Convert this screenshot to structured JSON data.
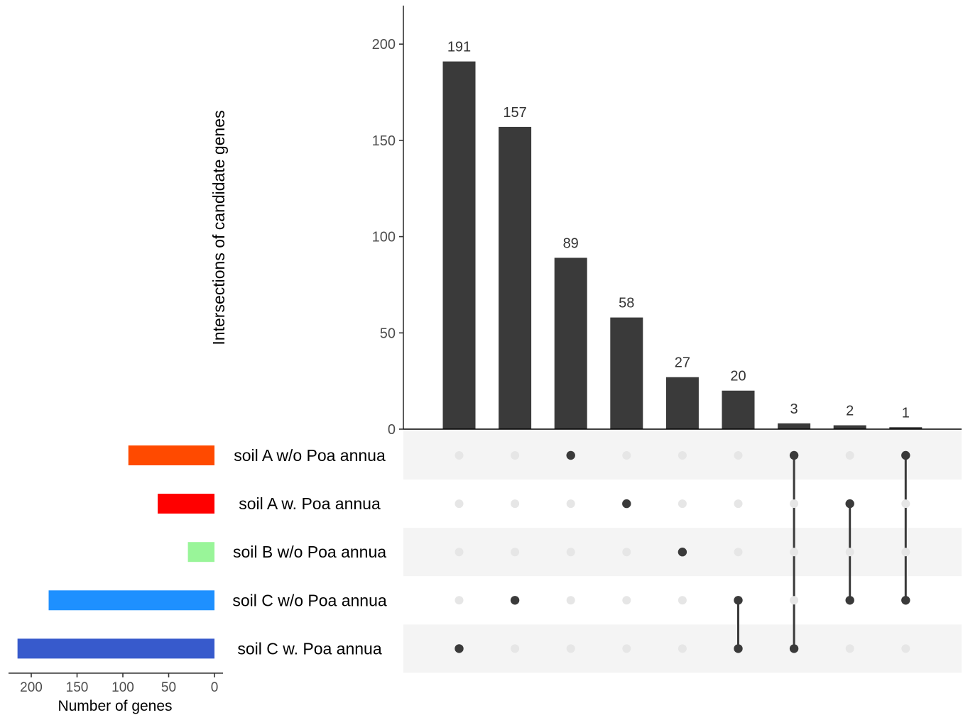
{
  "chart_data": {
    "type": "upset",
    "intersections": {
      "ylabel": "Intersections of candidate genes",
      "ylim": [
        0,
        220
      ],
      "yticks": [
        0,
        50,
        100,
        150,
        200
      ],
      "values": [
        191,
        157,
        89,
        58,
        27,
        20,
        3,
        2,
        1
      ],
      "labels": [
        "191",
        "157",
        "89",
        "58",
        "27",
        "20",
        "3",
        "2",
        "1"
      ],
      "bar_color": "#3a3a3a",
      "members": [
        [
          "soil C w. Poa annua"
        ],
        [
          "soil C w/o Poa annua"
        ],
        [
          "soil A w/o Poa annua"
        ],
        [
          "soil A w. Poa annua"
        ],
        [
          "soil B w/o Poa annua"
        ],
        [
          "soil C w/o Poa annua",
          "soil C w. Poa annua"
        ],
        [
          "soil A w/o Poa annua",
          "soil C w. Poa annua"
        ],
        [
          "soil A w. Poa annua",
          "soil C w/o Poa annua"
        ],
        [
          "soil A w/o Poa annua",
          "soil C w/o Poa annua"
        ]
      ]
    },
    "sets": {
      "xlabel": "Number of genes",
      "xlim": [
        0,
        220
      ],
      "xticks": [
        200,
        150,
        100,
        50,
        0
      ],
      "reversed": true,
      "names": [
        "soil A w/o Poa annua",
        "soil A w. Poa annua",
        "soil B w/o Poa annua",
        "soil C w/o Poa annua",
        "soil C w. Poa annua"
      ],
      "sizes": [
        94,
        62,
        29,
        181,
        215
      ],
      "colors": [
        "#ff4a00",
        "#ff0000",
        "#99f599",
        "#1e90ff",
        "#375acc"
      ]
    },
    "matrix": {
      "dot_active_color": "#3a3a3a",
      "dot_inactive_color": "#e6e6e6",
      "stripe_color": "#f4f4f4"
    },
    "grid": false
  }
}
